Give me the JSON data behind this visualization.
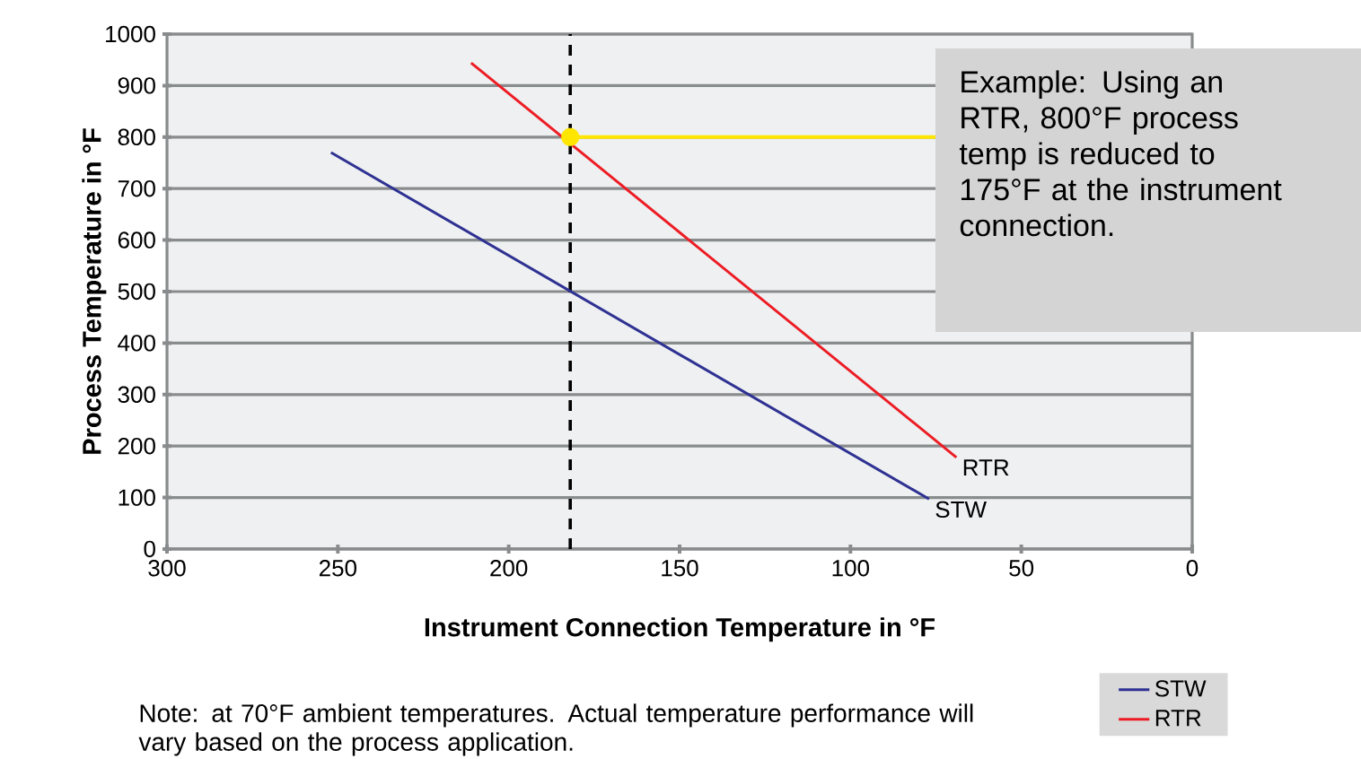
{
  "chart_data": {
    "type": "line",
    "xlabel": "Instrument Connection Temperature in °F",
    "ylabel": "Process Temperature in °F",
    "xlim": [
      300,
      0
    ],
    "ylim": [
      0,
      1000
    ],
    "xticks": [
      300,
      250,
      200,
      150,
      100,
      50,
      0
    ],
    "yticks": [
      0,
      100,
      200,
      300,
      400,
      500,
      600,
      700,
      800,
      900,
      1000
    ],
    "grid": "y",
    "legend": "bottom right",
    "series": [
      {
        "name": "STW",
        "color": "#2e3192",
        "x": [
          252,
          77
        ],
        "values": [
          770,
          97
        ]
      },
      {
        "name": "RTR",
        "color": "#ed1c24",
        "x": [
          211,
          69
        ],
        "values": [
          944,
          178
        ]
      },
      {
        "type": "line",
        "color": "#ffe600",
        "x": [
          182,
          75
        ],
        "values": [
          800,
          800
        ]
      },
      {
        "type": "scatter",
        "color": "#ffe600",
        "x": [
          182
        ],
        "values": [
          800
        ]
      }
    ],
    "ref_lines": [
      {
        "axis": "x",
        "value": 182,
        "color": "#000000",
        "line_style": "dashed"
      }
    ],
    "annotations": [
      "Example: Using an RTR, 800°F process temp is reduced to 175°F at the instrument connection.",
      "Note: at 70°F ambient temperatures. Actual temperature performance will vary based on the process application."
    ]
  }
}
